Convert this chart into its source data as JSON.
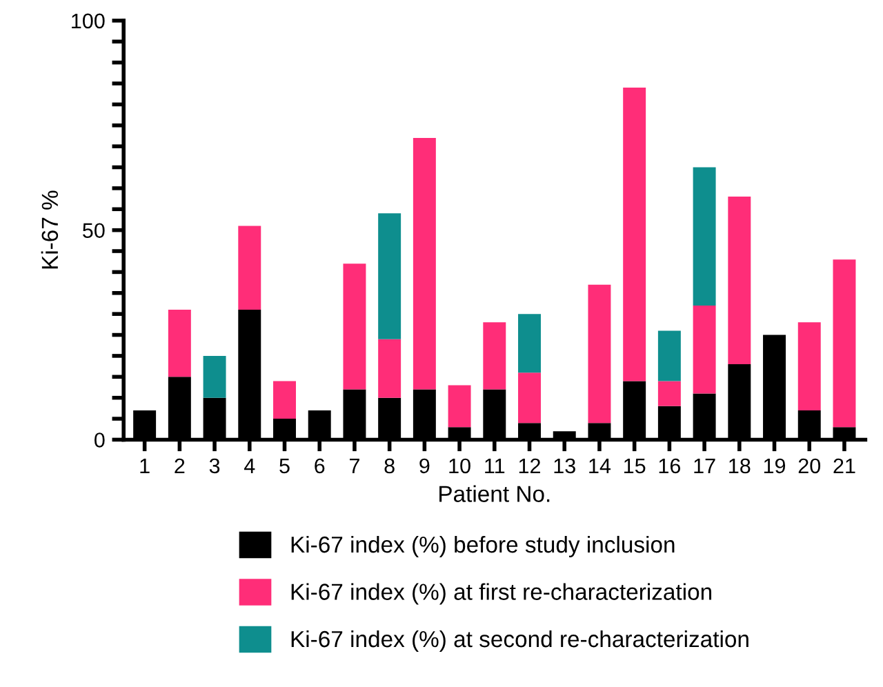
{
  "chart_data": {
    "type": "bar",
    "stacked": true,
    "categories": [
      "1",
      "2",
      "3",
      "4",
      "5",
      "6",
      "7",
      "8",
      "9",
      "10",
      "11",
      "12",
      "13",
      "14",
      "15",
      "16",
      "17",
      "18",
      "19",
      "20",
      "21"
    ],
    "series": [
      {
        "name": "Ki-67 index (%) before study inclusion",
        "color": "#000000",
        "values": [
          7,
          15,
          10,
          31,
          5,
          7,
          12,
          10,
          12,
          3,
          12,
          4,
          2,
          4,
          14,
          8,
          11,
          18,
          25,
          7,
          3
        ]
      },
      {
        "name": "Ki-67 index (%) at first re-characterization",
        "color": "#ff2d78",
        "values": [
          null,
          16,
          null,
          20,
          9,
          null,
          30,
          14,
          60,
          10,
          16,
          12,
          null,
          33,
          70,
          6,
          21,
          40,
          null,
          21,
          40
        ]
      },
      {
        "name": "Ki-67 index (%) at second re-characterization",
        "color": "#0e8e8e",
        "values": [
          null,
          null,
          10,
          null,
          null,
          null,
          null,
          30,
          null,
          null,
          null,
          14,
          null,
          null,
          null,
          12,
          33,
          null,
          null,
          null,
          null
        ]
      }
    ],
    "xlabel": "Patient No.",
    "ylabel": "Ki-67 %",
    "ylim": [
      0,
      100
    ],
    "yticks": [
      0,
      {
        "value": 5,
        "label": null
      },
      {
        "value": 10,
        "label": null
      },
      {
        "value": 15,
        "label": null
      },
      {
        "value": 20,
        "label": null
      },
      {
        "value": 25,
        "label": null
      },
      {
        "value": 30,
        "label": null
      },
      {
        "value": 35,
        "label": null
      },
      {
        "value": 40,
        "label": null
      },
      {
        "value": 45,
        "label": null
      },
      50,
      {
        "value": 55,
        "label": null
      },
      {
        "value": 60,
        "label": null
      },
      {
        "value": 65,
        "label": null
      },
      {
        "value": 70,
        "label": null
      },
      {
        "value": 75,
        "label": null
      },
      {
        "value": 80,
        "label": null
      },
      {
        "value": 85,
        "label": null
      },
      {
        "value": 90,
        "label": null
      },
      {
        "value": 95,
        "label": null
      },
      100
    ],
    "grid": false,
    "legend": "bottom"
  }
}
